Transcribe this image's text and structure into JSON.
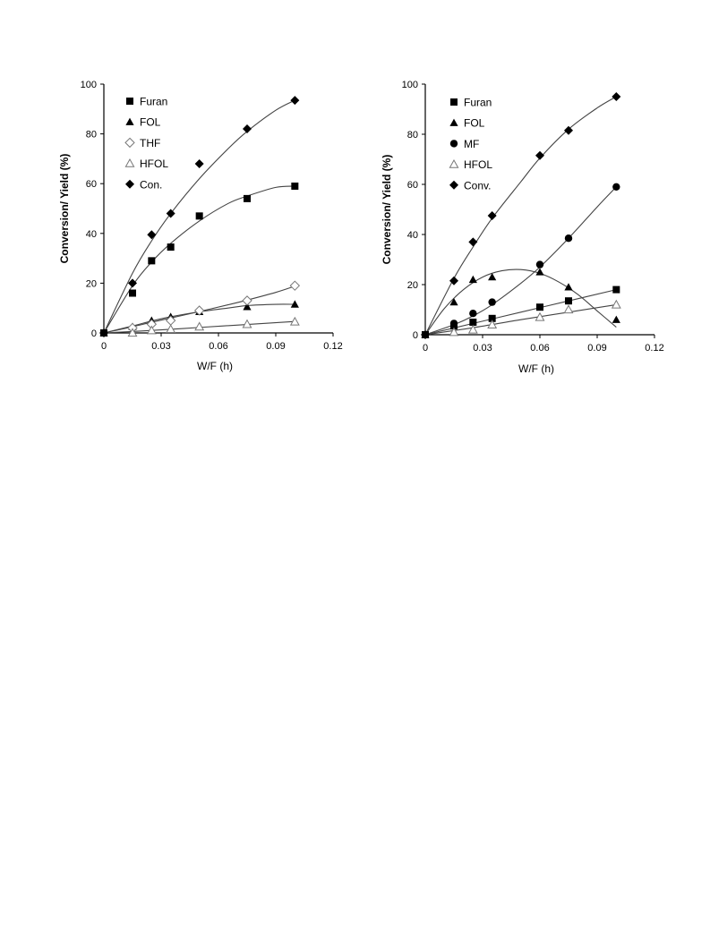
{
  "chart_data": [
    {
      "type": "scatter",
      "xlabel": "W/F (h)",
      "ylabel": "Conversion/ Yield (%)",
      "xlim": [
        0,
        0.12
      ],
      "ylim": [
        0,
        100
      ],
      "xticks": [
        "0",
        "0.03",
        "0.06",
        "0.09",
        "0.12"
      ],
      "yticks": [
        "0",
        "20",
        "40",
        "60",
        "80",
        "100"
      ],
      "legend_position": "top-left",
      "series": [
        {
          "name": "Furan",
          "marker": "filled-square",
          "x": [
            0,
            0.015,
            0.025,
            0.035,
            0.05,
            0.075,
            0.1
          ],
          "y": [
            0,
            16,
            29,
            34.5,
            47,
            54,
            59
          ],
          "fit": [
            [
              0,
              0
            ],
            [
              0.015,
              19
            ],
            [
              0.025,
              28.5
            ],
            [
              0.035,
              36
            ],
            [
              0.05,
              45
            ],
            [
              0.065,
              52
            ],
            [
              0.075,
              55
            ],
            [
              0.09,
              58.5
            ],
            [
              0.1,
              59
            ]
          ]
        },
        {
          "name": "FOL",
          "marker": "filled-triangle",
          "x": [
            0,
            0.015,
            0.025,
            0.035,
            0.05,
            0.075,
            0.1
          ],
          "y": [
            0,
            2.5,
            5,
            6.5,
            8.5,
            10.5,
            11.5
          ],
          "fit": [
            [
              0,
              0
            ],
            [
              0.015,
              2.8
            ],
            [
              0.025,
              4.8
            ],
            [
              0.035,
              6.5
            ],
            [
              0.05,
              8.5
            ],
            [
              0.065,
              10
            ],
            [
              0.075,
              11
            ],
            [
              0.09,
              11.5
            ],
            [
              0.1,
              11.5
            ]
          ]
        },
        {
          "name": "THF",
          "marker": "open-diamond",
          "x": [
            0.015,
            0.025,
            0.035,
            0.05,
            0.075,
            0.1
          ],
          "y": [
            2,
            3.5,
            5,
            9,
            13,
            19
          ],
          "fit": [
            [
              0,
              0
            ],
            [
              0.015,
              2.5
            ],
            [
              0.025,
              4.3
            ],
            [
              0.035,
              6
            ],
            [
              0.05,
              8.6
            ],
            [
              0.065,
              11.3
            ],
            [
              0.075,
              13.2
            ],
            [
              0.09,
              16.3
            ],
            [
              0.1,
              18.8
            ]
          ]
        },
        {
          "name": "HFOL",
          "marker": "open-triangle",
          "x": [
            0.015,
            0.025,
            0.035,
            0.05,
            0.075,
            0.1
          ],
          "y": [
            0,
            1,
            1.5,
            2.5,
            3.5,
            4.5
          ],
          "fit": [
            [
              0,
              0
            ],
            [
              0.025,
              1
            ],
            [
              0.05,
              2.2
            ],
            [
              0.075,
              3.4
            ],
            [
              0.1,
              4.6
            ]
          ]
        },
        {
          "name": "Con.",
          "marker": "filled-diamond",
          "x": [
            0,
            0.015,
            0.025,
            0.035,
            0.05,
            0.075,
            0.1
          ],
          "y": [
            0,
            20,
            39.5,
            48,
            68,
            82,
            93.5
          ],
          "fit": [
            [
              0,
              0
            ],
            [
              0.015,
              24
            ],
            [
              0.025,
              37
            ],
            [
              0.035,
              48
            ],
            [
              0.05,
              62
            ],
            [
              0.065,
              74
            ],
            [
              0.075,
              81
            ],
            [
              0.09,
              89.5
            ],
            [
              0.1,
              93.5
            ]
          ]
        }
      ]
    },
    {
      "type": "scatter",
      "xlabel": "W/F (h)",
      "ylabel": "Conversion/ Yield (%)",
      "xlim": [
        0,
        0.12
      ],
      "ylim": [
        0,
        100
      ],
      "xticks": [
        "0",
        "0.03",
        "0.06",
        "0.09",
        "0.12"
      ],
      "yticks": [
        "0",
        "20",
        "40",
        "60",
        "80",
        "100"
      ],
      "legend_position": "top-left",
      "series": [
        {
          "name": "Furan",
          "marker": "filled-square",
          "x": [
            0,
            0.015,
            0.025,
            0.035,
            0.06,
            0.075,
            0.1
          ],
          "y": [
            0,
            3.5,
            5,
            6.5,
            11,
            13.5,
            18
          ],
          "fit": [
            [
              0,
              0
            ],
            [
              0.025,
              4.5
            ],
            [
              0.05,
              9
            ],
            [
              0.075,
              13.5
            ],
            [
              0.1,
              18
            ]
          ]
        },
        {
          "name": "FOL",
          "marker": "filled-triangle",
          "x": [
            0,
            0.015,
            0.025,
            0.035,
            0.06,
            0.075,
            0.1
          ],
          "y": [
            0,
            13,
            22,
            23,
            25,
            19,
            6
          ],
          "fit": [
            [
              0,
              0
            ],
            [
              0.01,
              10.5
            ],
            [
              0.02,
              18
            ],
            [
              0.03,
              23
            ],
            [
              0.04,
              25.5
            ],
            [
              0.05,
              26
            ],
            [
              0.06,
              24.5
            ],
            [
              0.07,
              21
            ],
            [
              0.08,
              16
            ],
            [
              0.09,
              9.5
            ],
            [
              0.1,
              3
            ]
          ]
        },
        {
          "name": "MF",
          "marker": "filled-circle",
          "x": [
            0,
            0.015,
            0.025,
            0.035,
            0.06,
            0.075,
            0.1
          ],
          "y": [
            0,
            4.5,
            8.5,
            13,
            28,
            38.5,
            59
          ],
          "fit": [
            [
              0,
              0
            ],
            [
              0.015,
              4
            ],
            [
              0.025,
              7.5
            ],
            [
              0.035,
              12
            ],
            [
              0.05,
              20.5
            ],
            [
              0.06,
              27
            ],
            [
              0.075,
              38.5
            ],
            [
              0.09,
              51
            ],
            [
              0.1,
              59
            ]
          ]
        },
        {
          "name": "HFOL",
          "marker": "open-triangle",
          "x": [
            0.015,
            0.025,
            0.035,
            0.06,
            0.075,
            0.1
          ],
          "y": [
            1,
            2,
            4,
            7,
            10,
            12
          ],
          "fit": [
            [
              0,
              0
            ],
            [
              0.025,
              2.8
            ],
            [
              0.05,
              6
            ],
            [
              0.075,
              9
            ],
            [
              0.1,
              12
            ]
          ]
        },
        {
          "name": "Conv.",
          "marker": "filled-diamond",
          "x": [
            0,
            0.015,
            0.025,
            0.035,
            0.06,
            0.075,
            0.1
          ],
          "y": [
            0,
            21.5,
            37,
            47.5,
            71.5,
            81.5,
            95
          ],
          "fit": [
            [
              0,
              0
            ],
            [
              0.015,
              22.5
            ],
            [
              0.025,
              35
            ],
            [
              0.035,
              46.5
            ],
            [
              0.05,
              61
            ],
            [
              0.06,
              70.5
            ],
            [
              0.075,
              82
            ],
            [
              0.09,
              90.5
            ],
            [
              0.1,
              95
            ]
          ]
        }
      ]
    }
  ]
}
